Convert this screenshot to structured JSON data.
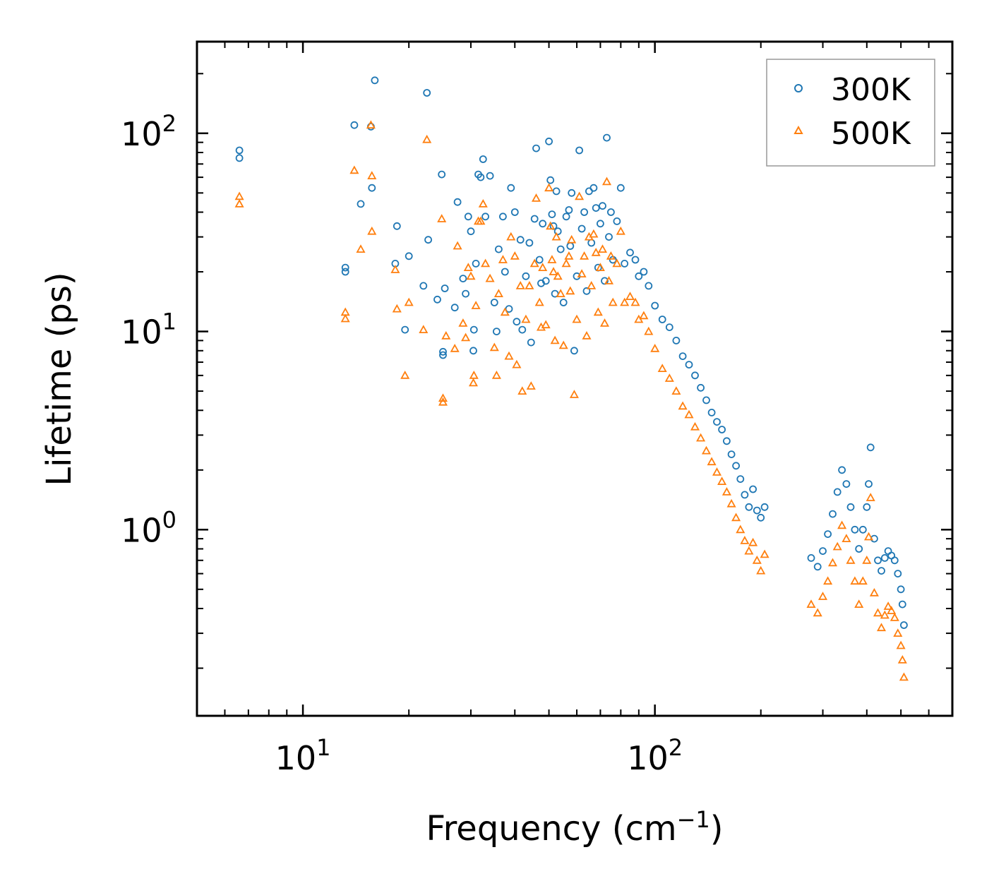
{
  "chart_data": {
    "type": "scatter",
    "title": "",
    "xlabel": "Frequency (cm",
    "xlabel_sup": "−1",
    "xlabel_close": ")",
    "ylabel": "Lifetime (ps)",
    "xscale": "log",
    "yscale": "log",
    "xlim": [
      5,
      700
    ],
    "ylim": [
      0.115,
      290
    ],
    "x_ticks": [
      {
        "value": 10,
        "base": "10",
        "exp": "1"
      },
      {
        "value": 100,
        "base": "10",
        "exp": "2"
      }
    ],
    "y_ticks": [
      {
        "value": 1,
        "base": "10",
        "exp": "0"
      },
      {
        "value": 10,
        "base": "10",
        "exp": "1"
      },
      {
        "value": 100,
        "base": "10",
        "exp": "2"
      }
    ],
    "legend_position": "top-right",
    "series": [
      {
        "name": "300K",
        "marker": "circle",
        "color": "#1f77b4",
        "points": [
          [
            6.6,
            82
          ],
          [
            6.6,
            75
          ],
          [
            13.2,
            21
          ],
          [
            13.2,
            20
          ],
          [
            14.0,
            110
          ],
          [
            14.6,
            44
          ],
          [
            15.6,
            108
          ],
          [
            15.7,
            53
          ],
          [
            16.0,
            185
          ],
          [
            18.3,
            22
          ],
          [
            18.5,
            34
          ],
          [
            19.5,
            10.2
          ],
          [
            20.0,
            24
          ],
          [
            22.0,
            17
          ],
          [
            22.5,
            160
          ],
          [
            22.7,
            29
          ],
          [
            24.1,
            14.5
          ],
          [
            24.8,
            62
          ],
          [
            25.0,
            7.6
          ],
          [
            25.0,
            7.9
          ],
          [
            25.3,
            16.5
          ],
          [
            27.0,
            13.2
          ],
          [
            27.5,
            45
          ],
          [
            28.5,
            18.5
          ],
          [
            29.0,
            15.5
          ],
          [
            29.5,
            38
          ],
          [
            30.0,
            32
          ],
          [
            30.5,
            8.0
          ],
          [
            30.6,
            10.2
          ],
          [
            31.0,
            22
          ],
          [
            31.5,
            62
          ],
          [
            32.0,
            60
          ],
          [
            32.5,
            74
          ],
          [
            33.0,
            38
          ],
          [
            34.0,
            61
          ],
          [
            35.0,
            14.0
          ],
          [
            35.5,
            10.0
          ],
          [
            36.0,
            26
          ],
          [
            37.0,
            38
          ],
          [
            37.5,
            20
          ],
          [
            38.5,
            13.0
          ],
          [
            39.0,
            53
          ],
          [
            40.0,
            40
          ],
          [
            40.5,
            11.2
          ],
          [
            41.5,
            29
          ],
          [
            42.0,
            10.2
          ],
          [
            43.0,
            19
          ],
          [
            44.0,
            28
          ],
          [
            44.5,
            8.8
          ],
          [
            45.5,
            37
          ],
          [
            46.0,
            84
          ],
          [
            47.0,
            23
          ],
          [
            47.5,
            17.5
          ],
          [
            48.0,
            35
          ],
          [
            49.0,
            18.0
          ],
          [
            50.0,
            91
          ],
          [
            50.5,
            58
          ],
          [
            51.0,
            39
          ],
          [
            51.5,
            34
          ],
          [
            52.0,
            15.5
          ],
          [
            52.5,
            51
          ],
          [
            53.0,
            32
          ],
          [
            54.0,
            26
          ],
          [
            55.0,
            14
          ],
          [
            56.0,
            38
          ],
          [
            57.0,
            41
          ],
          [
            57.5,
            27
          ],
          [
            58.0,
            50
          ],
          [
            59.0,
            8.0
          ],
          [
            60.0,
            19
          ],
          [
            61.0,
            82
          ],
          [
            62.0,
            33
          ],
          [
            63.0,
            40
          ],
          [
            64.0,
            16
          ],
          [
            65.0,
            51
          ],
          [
            66.0,
            28
          ],
          [
            67.0,
            53
          ],
          [
            68.0,
            42
          ],
          [
            69.0,
            21
          ],
          [
            70.0,
            35
          ],
          [
            71.0,
            43
          ],
          [
            72.0,
            18
          ],
          [
            73.0,
            95
          ],
          [
            74.0,
            30
          ],
          [
            75.0,
            40
          ],
          [
            76.0,
            23
          ],
          [
            78.0,
            36
          ],
          [
            80.0,
            53
          ],
          [
            82.0,
            22
          ],
          [
            85.0,
            25
          ],
          [
            88.0,
            23
          ],
          [
            90.0,
            19
          ],
          [
            93.0,
            20
          ],
          [
            96.0,
            17
          ],
          [
            100.0,
            13.5
          ],
          [
            105.0,
            11.5
          ],
          [
            110.0,
            10.5
          ],
          [
            115.0,
            9.0
          ],
          [
            120.0,
            7.5
          ],
          [
            125.0,
            6.8
          ],
          [
            130.0,
            6.0
          ],
          [
            135.0,
            5.2
          ],
          [
            140.0,
            4.5
          ],
          [
            145.0,
            3.9
          ],
          [
            150.0,
            3.5
          ],
          [
            155.0,
            3.2
          ],
          [
            160.0,
            2.8
          ],
          [
            165.0,
            2.4
          ],
          [
            170.0,
            2.1
          ],
          [
            175.0,
            1.8
          ],
          [
            180.0,
            1.5
          ],
          [
            185.0,
            1.3
          ],
          [
            190.0,
            1.6
          ],
          [
            195.0,
            1.25
          ],
          [
            200.0,
            1.15
          ],
          [
            205.0,
            1.3
          ],
          [
            278.0,
            0.72
          ],
          [
            290.0,
            0.65
          ],
          [
            300.0,
            0.78
          ],
          [
            310.0,
            0.95
          ],
          [
            320.0,
            1.2
          ],
          [
            330.0,
            1.55
          ],
          [
            340.0,
            2.0
          ],
          [
            350.0,
            1.7
          ],
          [
            360.0,
            1.3
          ],
          [
            370.0,
            1.0
          ],
          [
            380.0,
            0.8
          ],
          [
            390.0,
            1.0
          ],
          [
            400.0,
            1.3
          ],
          [
            405.0,
            1.7
          ],
          [
            410.0,
            2.6
          ],
          [
            420.0,
            0.9
          ],
          [
            430.0,
            0.7
          ],
          [
            440.0,
            0.62
          ],
          [
            450.0,
            0.72
          ],
          [
            460.0,
            0.78
          ],
          [
            470.0,
            0.74
          ],
          [
            480.0,
            0.7
          ],
          [
            490.0,
            0.6
          ],
          [
            500.0,
            0.5
          ],
          [
            505.0,
            0.42
          ],
          [
            510.0,
            0.33
          ]
        ]
      },
      {
        "name": "500K",
        "marker": "triangle",
        "color": "#ff7f0e",
        "points": [
          [
            6.6,
            48
          ],
          [
            6.6,
            44
          ],
          [
            13.2,
            12.5
          ],
          [
            13.2,
            11.6
          ],
          [
            14.0,
            65
          ],
          [
            14.6,
            26
          ],
          [
            15.6,
            110
          ],
          [
            15.7,
            61
          ],
          [
            15.7,
            32
          ],
          [
            18.3,
            20.5
          ],
          [
            18.5,
            13.0
          ],
          [
            19.5,
            6.0
          ],
          [
            20.0,
            14.0
          ],
          [
            22.0,
            10.2
          ],
          [
            22.5,
            93
          ],
          [
            24.8,
            37
          ],
          [
            25.0,
            4.6
          ],
          [
            25.0,
            4.4
          ],
          [
            25.5,
            9.5
          ],
          [
            27.0,
            8.2
          ],
          [
            27.5,
            27
          ],
          [
            28.5,
            11.0
          ],
          [
            29.0,
            9.3
          ],
          [
            29.5,
            21
          ],
          [
            30.0,
            19
          ],
          [
            30.5,
            5.5
          ],
          [
            30.6,
            6.0
          ],
          [
            31.0,
            13.5
          ],
          [
            31.5,
            36
          ],
          [
            32.0,
            36
          ],
          [
            32.5,
            44
          ],
          [
            33.0,
            22
          ],
          [
            34.0,
            18.5
          ],
          [
            35.0,
            8.3
          ],
          [
            35.5,
            6.0
          ],
          [
            36.0,
            15.5
          ],
          [
            37.0,
            23
          ],
          [
            37.5,
            12.5
          ],
          [
            38.5,
            7.5
          ],
          [
            39.0,
            30
          ],
          [
            40.0,
            24
          ],
          [
            40.5,
            6.8
          ],
          [
            41.5,
            17
          ],
          [
            42.0,
            5.0
          ],
          [
            43.0,
            11.5
          ],
          [
            44.0,
            17
          ],
          [
            44.5,
            5.3
          ],
          [
            45.5,
            22
          ],
          [
            46.0,
            47
          ],
          [
            47.0,
            14
          ],
          [
            47.5,
            10.5
          ],
          [
            48.0,
            21
          ],
          [
            49.0,
            10.8
          ],
          [
            50.0,
            53
          ],
          [
            50.5,
            34
          ],
          [
            51.0,
            23
          ],
          [
            51.5,
            20
          ],
          [
            52.0,
            9.0
          ],
          [
            52.5,
            30
          ],
          [
            53.0,
            19
          ],
          [
            54.0,
            15.5
          ],
          [
            55.0,
            8.5
          ],
          [
            56.0,
            22
          ],
          [
            57.0,
            24
          ],
          [
            57.5,
            16
          ],
          [
            58.0,
            29
          ],
          [
            59.0,
            4.8
          ],
          [
            60.0,
            11.5
          ],
          [
            61.0,
            48
          ],
          [
            62.0,
            19.5
          ],
          [
            63.0,
            24
          ],
          [
            64.0,
            9.5
          ],
          [
            65.0,
            30
          ],
          [
            66.0,
            17
          ],
          [
            67.0,
            31
          ],
          [
            68.0,
            25
          ],
          [
            69.0,
            12.5
          ],
          [
            70.0,
            21
          ],
          [
            71.0,
            26
          ],
          [
            72.0,
            11
          ],
          [
            73.0,
            57
          ],
          [
            74.0,
            18
          ],
          [
            75.0,
            24
          ],
          [
            76.0,
            14
          ],
          [
            78.0,
            22
          ],
          [
            80.0,
            32
          ],
          [
            82.0,
            14
          ],
          [
            85.0,
            15
          ],
          [
            88.0,
            14
          ],
          [
            90.0,
            11.5
          ],
          [
            93.0,
            12
          ],
          [
            96.0,
            10
          ],
          [
            100.0,
            8.2
          ],
          [
            105.0,
            6.5
          ],
          [
            110.0,
            5.8
          ],
          [
            115.0,
            5.0
          ],
          [
            120.0,
            4.2
          ],
          [
            125.0,
            3.8
          ],
          [
            130.0,
            3.3
          ],
          [
            135.0,
            2.9
          ],
          [
            140.0,
            2.5
          ],
          [
            145.0,
            2.2
          ],
          [
            150.0,
            1.95
          ],
          [
            155.0,
            1.75
          ],
          [
            160.0,
            1.55
          ],
          [
            165.0,
            1.35
          ],
          [
            170.0,
            1.15
          ],
          [
            175.0,
            1.0
          ],
          [
            180.0,
            0.88
          ],
          [
            185.0,
            0.78
          ],
          [
            190.0,
            0.86
          ],
          [
            195.0,
            0.7
          ],
          [
            200.0,
            0.62
          ],
          [
            205.0,
            0.75
          ],
          [
            278.0,
            0.42
          ],
          [
            290.0,
            0.38
          ],
          [
            300.0,
            0.46
          ],
          [
            310.0,
            0.55
          ],
          [
            320.0,
            0.68
          ],
          [
            330.0,
            0.82
          ],
          [
            340.0,
            1.05
          ],
          [
            350.0,
            0.9
          ],
          [
            360.0,
            0.7
          ],
          [
            370.0,
            0.55
          ],
          [
            380.0,
            0.42
          ],
          [
            390.0,
            0.55
          ],
          [
            400.0,
            0.7
          ],
          [
            405.0,
            0.92
          ],
          [
            410.0,
            1.45
          ],
          [
            420.0,
            0.48
          ],
          [
            430.0,
            0.38
          ],
          [
            440.0,
            0.32
          ],
          [
            450.0,
            0.37
          ],
          [
            460.0,
            0.41
          ],
          [
            470.0,
            0.39
          ],
          [
            480.0,
            0.36
          ],
          [
            490.0,
            0.3
          ],
          [
            500.0,
            0.26
          ],
          [
            505.0,
            0.22
          ],
          [
            510.0,
            0.18
          ]
        ]
      }
    ]
  }
}
